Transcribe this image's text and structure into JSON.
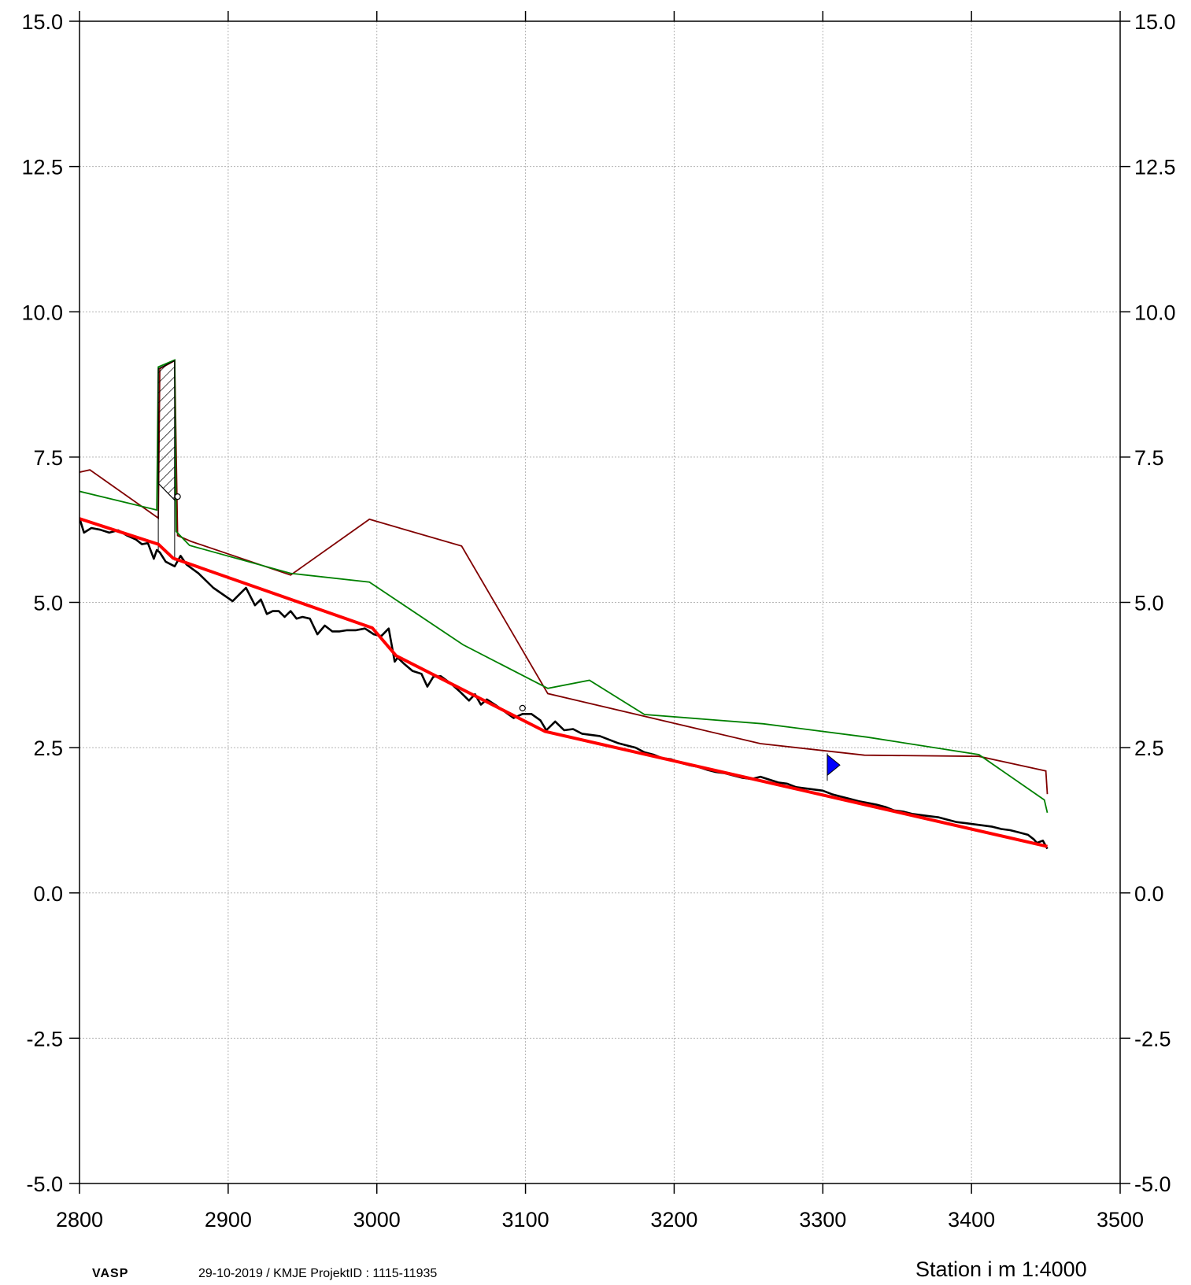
{
  "footer": {
    "app_name": "VASP",
    "meta": "29-10-2019 / KMJE    ProjektID : 1115-11935",
    "xlabel": "Station i m  1:4000"
  },
  "chart_data": {
    "type": "line",
    "title": "",
    "xlabel": "Station i m  1:4000",
    "ylabel": "",
    "xlim": [
      2800,
      3500
    ],
    "ylim": [
      -5.0,
      15.0
    ],
    "grid": true,
    "x_ticks": [
      2800,
      2900,
      3000,
      3100,
      3200,
      3300,
      3400,
      3500
    ],
    "y_ticks": [
      -5.0,
      -2.5,
      0.0,
      2.5,
      5.0,
      7.5,
      10.0,
      12.5,
      15.0
    ],
    "y_tick_labels": [
      "-5.0",
      "-2.5",
      "0.0",
      "2.5",
      "5.0",
      "7.5",
      "10.0",
      "12.5",
      "15.0"
    ],
    "colors": {
      "terrain": "#000000",
      "grade": "#ff0000",
      "green_line": "#008000",
      "dark_red_line": "#800000",
      "flag": "#0000ff",
      "grid": "#b4b4b4"
    },
    "series": [
      {
        "key": "dark_red_line",
        "x": [
          2800,
          2807,
          2853,
          2854,
          2864,
          2866,
          2875,
          2942,
          2995,
          3057,
          3115,
          3258,
          3328,
          3405,
          3450,
          3451
        ],
        "y": [
          7.24,
          7.28,
          6.45,
          9.02,
          9.16,
          6.15,
          6.05,
          5.47,
          6.43,
          5.97,
          3.43,
          2.57,
          2.37,
          2.35,
          2.1,
          1.7
        ]
      },
      {
        "key": "green_line",
        "x": [
          2800,
          2852,
          2853,
          2864,
          2865,
          2874,
          2942,
          2995,
          3058,
          3115,
          3143,
          3180,
          3260,
          3330,
          3405,
          3449,
          3451
        ],
        "y": [
          6.91,
          6.59,
          9.05,
          9.17,
          6.22,
          5.98,
          5.5,
          5.35,
          4.27,
          3.52,
          3.66,
          3.07,
          2.91,
          2.68,
          2.38,
          1.6,
          1.38
        ]
      },
      {
        "key": "terrain",
        "x": [
          2800,
          2803,
          2808,
          2814,
          2820,
          2826,
          2832,
          2838,
          2842,
          2846,
          2850,
          2852,
          2854,
          2858,
          2864,
          2868,
          2872,
          2880,
          2890,
          2903,
          2908,
          2912,
          2918,
          2922,
          2926,
          2930,
          2934,
          2938,
          2942,
          2946,
          2950,
          2955,
          2960,
          2965,
          2970,
          2975,
          2980,
          2986,
          2992,
          2998,
          3003,
          3008,
          3012,
          3014,
          3018,
          3024,
          3030,
          3034,
          3038,
          3043,
          3050,
          3056,
          3062,
          3066,
          3070,
          3074,
          3080,
          3086,
          3092,
          3098,
          3104,
          3110,
          3114,
          3120,
          3126,
          3132,
          3138,
          3144,
          3150,
          3156,
          3162,
          3168,
          3174,
          3180,
          3186,
          3192,
          3198,
          3204,
          3210,
          3216,
          3222,
          3228,
          3234,
          3240,
          3246,
          3252,
          3258,
          3264,
          3270,
          3276,
          3282,
          3288,
          3294,
          3300,
          3306,
          3312,
          3318,
          3324,
          3330,
          3336,
          3342,
          3348,
          3354,
          3360,
          3366,
          3372,
          3378,
          3384,
          3390,
          3396,
          3402,
          3408,
          3414,
          3420,
          3426,
          3432,
          3438,
          3442,
          3444,
          3448,
          3451
        ],
        "y": [
          6.45,
          6.2,
          6.28,
          6.25,
          6.2,
          6.24,
          6.15,
          6.08,
          6.0,
          6.02,
          5.75,
          5.9,
          5.86,
          5.7,
          5.62,
          5.8,
          5.65,
          5.5,
          5.25,
          5.02,
          5.15,
          5.25,
          4.95,
          5.05,
          4.8,
          4.85,
          4.85,
          4.75,
          4.85,
          4.72,
          4.75,
          4.72,
          4.45,
          4.6,
          4.5,
          4.5,
          4.52,
          4.52,
          4.55,
          4.45,
          4.42,
          4.55,
          3.98,
          4.05,
          3.95,
          3.82,
          3.77,
          3.55,
          3.72,
          3.73,
          3.6,
          3.46,
          3.31,
          3.42,
          3.24,
          3.33,
          3.23,
          3.12,
          3.01,
          3.08,
          3.08,
          2.97,
          2.8,
          2.95,
          2.8,
          2.82,
          2.74,
          2.72,
          2.7,
          2.64,
          2.58,
          2.54,
          2.5,
          2.42,
          2.38,
          2.32,
          2.3,
          2.24,
          2.2,
          2.17,
          2.12,
          2.08,
          2.06,
          2.02,
          1.98,
          1.96,
          2.0,
          1.95,
          1.9,
          1.88,
          1.82,
          1.8,
          1.78,
          1.76,
          1.7,
          1.66,
          1.62,
          1.58,
          1.55,
          1.52,
          1.48,
          1.42,
          1.4,
          1.36,
          1.34,
          1.32,
          1.3,
          1.26,
          1.22,
          1.2,
          1.18,
          1.16,
          1.14,
          1.1,
          1.08,
          1.04,
          1.0,
          0.92,
          0.86,
          0.9,
          0.76
        ]
      },
      {
        "key": "grade",
        "x": [
          2800,
          2853,
          2863,
          2997,
          3013,
          3113,
          3451
        ],
        "y": [
          6.44,
          6.0,
          5.76,
          4.56,
          4.08,
          2.78,
          0.8
        ]
      }
    ],
    "structure": {
      "x_from": 2853,
      "x_to": 2864,
      "top": [
        9.02,
        9.16
      ],
      "bottom_left": 7.05,
      "bottom_right": 6.76
    },
    "markers": [
      {
        "type": "circle",
        "x": 2866,
        "y": 6.82
      },
      {
        "type": "circle",
        "x": 3098,
        "y": 3.18
      },
      {
        "type": "flag",
        "x": 3303,
        "y": 2.2
      }
    ]
  }
}
